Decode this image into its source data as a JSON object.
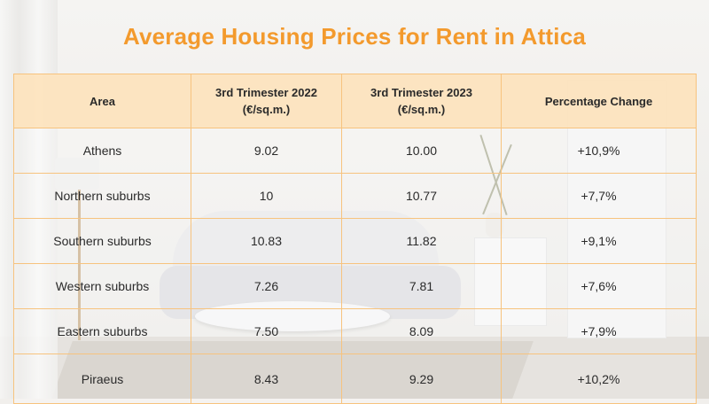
{
  "chart_data": {
    "type": "table",
    "title": "Average Housing Prices  for Rent in Attica",
    "columns": [
      {
        "line1": "Area",
        "line2": ""
      },
      {
        "line1": "3rd Trimester 2022",
        "line2": "(€/sq.m.)"
      },
      {
        "line1": "3rd Trimester 2023",
        "line2": "(€/sq.m.)"
      },
      {
        "line1": "Percentage Change",
        "line2": ""
      }
    ],
    "rows": [
      {
        "area": "Athens",
        "q3_2022": "9.02",
        "q3_2023": "10.00",
        "change": "+10,9%"
      },
      {
        "area": "Northern suburbs",
        "q3_2022": "10",
        "q3_2023": "10.77",
        "change": "+7,7%"
      },
      {
        "area": "Southern suburbs",
        "q3_2022": "10.83",
        "q3_2023": "11.82",
        "change": "+9,1%"
      },
      {
        "area": "Western suburbs",
        "q3_2022": "7.26",
        "q3_2023": "7.81",
        "change": "+7,6%"
      },
      {
        "area": "Eastern suburbs",
        "q3_2022": "7.50",
        "q3_2023": "8.09",
        "change": "+7,9%"
      },
      {
        "area": "Piraeus",
        "q3_2022": "8.43",
        "q3_2023": "9.29",
        "change": "+10,2%"
      }
    ]
  },
  "colors": {
    "accent": "#f39a2d",
    "header_bg": "#fde3bd",
    "grid": "#f7c37e"
  }
}
